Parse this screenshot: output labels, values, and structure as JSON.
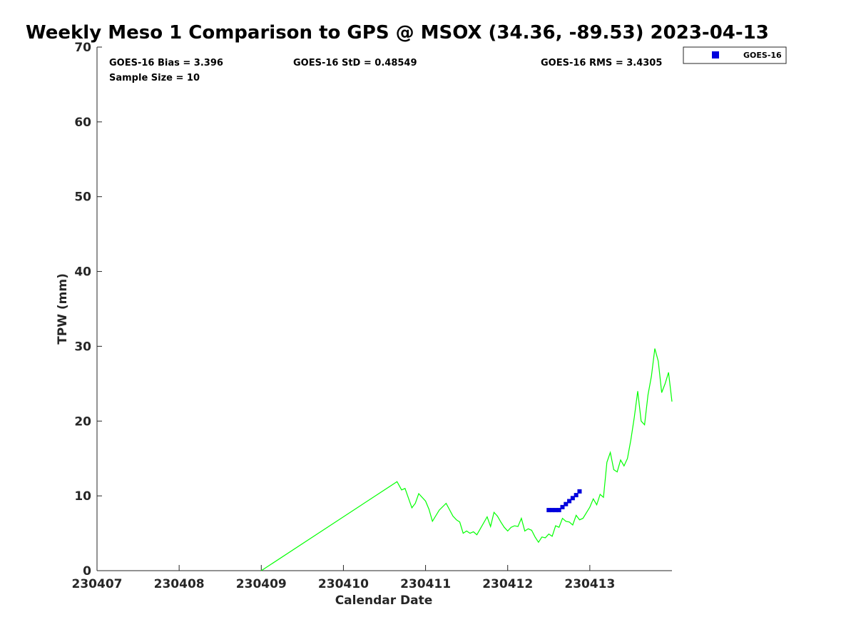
{
  "chart_data": {
    "type": "line",
    "title": "Weekly Meso 1 Comparison to GPS @ MSOX (34.36, -89.53) 2023-04-13",
    "xlabel": "Calendar Date",
    "ylabel": "TPW (mm)",
    "xlim": [
      "230407",
      "230414"
    ],
    "ylim": [
      0,
      70
    ],
    "x_ticks": [
      "230407",
      "230408",
      "230409",
      "230410",
      "230411",
      "230412",
      "230413"
    ],
    "y_ticks": [
      0,
      10,
      20,
      30,
      40,
      50,
      60,
      70
    ],
    "grid": false,
    "legend_position": "top-right, outside plot",
    "stats": {
      "bias": "GOES-16 Bias = 3.396",
      "std": "GOES-16 StD = 0.48549",
      "rms": "GOES-16 RMS = 3.4305",
      "sample": "Sample Size = 10"
    },
    "series": [
      {
        "color": "#00ff00",
        "style": "line",
        "x": [
          "230409 00:00",
          "230410 15:40",
          "230410 17:00",
          "230410 18:00",
          "230410 20:00",
          "230410 21:00",
          "230410 22:00",
          "230411 00:00",
          "230411 01:00",
          "230411 02:00",
          "230411 04:00",
          "230411 06:00",
          "230411 08:00",
          "230411 09:00",
          "230411 10:00",
          "230411 11:00",
          "230411 12:00",
          "230411 13:00",
          "230411 14:00",
          "230411 15:00",
          "230411 16:00",
          "230411 18:00",
          "230411 19:00",
          "230411 20:00",
          "230411 21:00",
          "230411 22:00",
          "230411 23:00",
          "230412 00:00",
          "230412 01:00",
          "230412 02:00",
          "230412 03:00",
          "230412 04:00",
          "230412 05:00",
          "230412 06:00",
          "230412 07:00",
          "230412 08:00",
          "230412 09:00",
          "230412 10:00",
          "230412 11:00",
          "230412 12:00",
          "230412 13:00",
          "230412 14:00",
          "230412 15:00",
          "230412 16:00",
          "230412 17:00",
          "230412 18:00",
          "230412 19:00",
          "230412 20:00",
          "230412 21:00",
          "230412 22:00",
          "230413 00:00",
          "230413 01:00",
          "230413 02:00",
          "230413 03:00",
          "230413 04:00",
          "230413 05:00",
          "230413 06:00",
          "230413 07:00",
          "230413 08:00",
          "230413 09:00",
          "230413 10:00",
          "230413 11:00",
          "230413 12:00",
          "230413 13:00",
          "230413 14:00",
          "230413 15:00",
          "230413 16:00",
          "230413 17:00",
          "230413 18:00",
          "230413 19:00",
          "230413 20:00",
          "230413 21:00",
          "230413 22:00",
          "230413 23:00",
          "230414 00:00"
        ],
        "values": [
          0,
          11.9,
          10.8,
          11.0,
          8.4,
          9.0,
          10.3,
          9.3,
          8.2,
          6.6,
          8.1,
          9.0,
          7.3,
          6.8,
          6.5,
          5.0,
          5.3,
          5.0,
          5.2,
          4.8,
          5.6,
          7.2,
          5.9,
          7.8,
          7.3,
          6.5,
          5.8,
          5.3,
          5.8,
          6.0,
          5.9,
          7.0,
          5.3,
          5.6,
          5.4,
          4.5,
          3.8,
          4.5,
          4.4,
          4.9,
          4.6,
          6.0,
          5.8,
          7.0,
          6.6,
          6.5,
          6.1,
          7.4,
          6.8,
          7.0,
          8.5,
          9.6,
          8.8,
          10.2,
          9.8,
          14.5,
          15.8,
          13.5,
          13.2,
          14.8,
          14.0,
          15.0,
          17.5,
          20.5,
          24.0,
          20.0,
          19.5,
          23.5,
          26.0,
          29.7,
          28.0,
          23.8,
          25.0,
          26.5,
          22.6
        ]
      },
      {
        "name": "GOES-16",
        "color": "#0000dd",
        "style": "square-markers",
        "x": [
          "230412 12:00",
          "230412 13:00",
          "230412 14:00",
          "230412 15:00",
          "230412 16:00",
          "230412 17:00",
          "230412 18:00",
          "230412 19:00",
          "230412 20:00",
          "230412 21:00"
        ],
        "values": [
          8.1,
          8.1,
          8.1,
          8.1,
          8.5,
          8.9,
          9.3,
          9.7,
          10.1,
          10.6
        ]
      }
    ]
  }
}
